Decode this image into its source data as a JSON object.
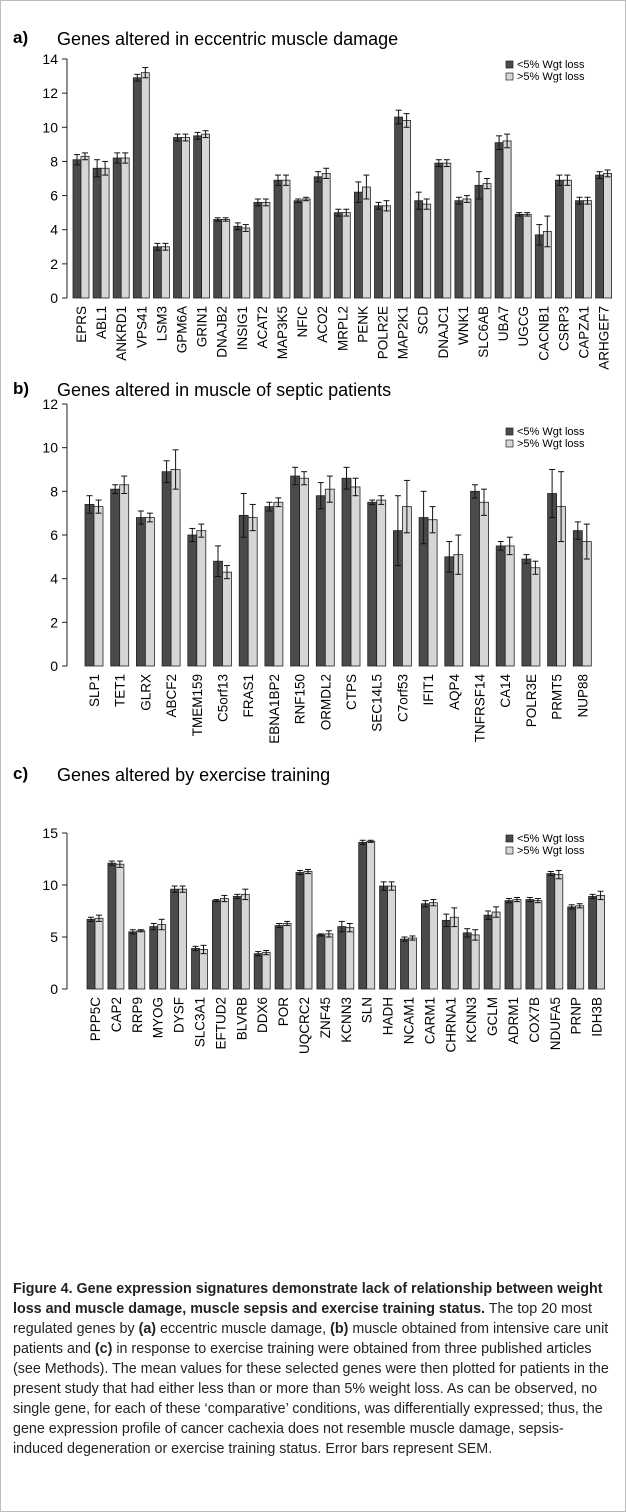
{
  "legend": {
    "series_a": "<5% Wgt loss",
    "series_b": ">5% Wgt loss"
  },
  "colors": {
    "series_a": "#4a4a4a",
    "series_b": "#d6d6d6",
    "border": "#bdbdbd"
  },
  "caption": {
    "title": "Figure 4. Gene expression signatures demonstrate lack of relationship between weight loss and muscle damage, muscle sepsis and exercise training status.",
    "p1": " The top 20 most regulated genes by ",
    "b1": "(a)",
    "p2": " eccentric muscle damage, ",
    "b2": "(b)",
    "p3": " muscle obtained from intensive care unit patients and ",
    "b3": "(c)",
    "p4": " in response to exercise training were obtained from three published articles (see Methods). The mean values for these selected genes were then plotted for patients in the present study that had either less than or more than 5% weight loss. As can be observed, no single gene, for each of these ‘comparative’ conditions, was differentially expressed; thus, the gene expression profile of cancer cachexia does not resemble muscle damage, sepsis-induced degeneration or exercise training status. Error bars represent SEM."
  },
  "chart_data": [
    {
      "type": "bar",
      "panel": "a)",
      "title": "Genes altered in eccentric muscle damage",
      "ylim": [
        0,
        14
      ],
      "yticks": [
        "0",
        "2",
        "4",
        "6",
        "8",
        "10",
        "12",
        "14"
      ],
      "grid": false,
      "legend_position": "top-right",
      "categories": [
        "EPRS",
        "ABL1",
        "ANKRD1",
        "VPS41",
        "LSM3",
        "GPM6A",
        "GRIN1",
        "DNAJB2",
        "INSIG1",
        "ACAT2",
        "MAP3K5",
        "NFIC",
        "ACO2",
        "MRPL2",
        "PENK",
        "POLR2E",
        "MAP2K1",
        "SCD",
        "DNAJC1",
        "WNK1",
        "SLC6AB",
        "UBA7",
        "UGCG",
        "CACNB1",
        "CSRP3",
        "CAPZA1",
        "ARHGEF7"
      ],
      "series": [
        {
          "name": "<5% Wgt loss",
          "values": [
            8.1,
            7.6,
            8.2,
            12.9,
            3.0,
            9.4,
            9.5,
            4.6,
            4.2,
            5.6,
            6.9,
            5.7,
            7.1,
            5.0,
            6.2,
            5.4,
            10.6,
            5.7,
            7.9,
            5.7,
            6.6,
            9.1,
            4.9,
            3.7,
            6.9,
            5.7,
            7.2
          ],
          "errors": [
            0.3,
            0.5,
            0.3,
            0.2,
            0.2,
            0.2,
            0.2,
            0.1,
            0.2,
            0.2,
            0.3,
            0.1,
            0.3,
            0.2,
            0.6,
            0.2,
            0.4,
            0.5,
            0.2,
            0.2,
            0.8,
            0.4,
            0.1,
            0.6,
            0.3,
            0.2,
            0.2
          ]
        },
        {
          "name": ">5% Wgt loss",
          "values": [
            8.3,
            7.6,
            8.2,
            13.2,
            3.0,
            9.4,
            9.6,
            4.6,
            4.1,
            5.6,
            6.9,
            5.8,
            7.3,
            5.0,
            6.5,
            5.4,
            10.4,
            5.5,
            7.9,
            5.8,
            6.7,
            9.2,
            4.9,
            3.9,
            6.9,
            5.7,
            7.3
          ],
          "errors": [
            0.2,
            0.4,
            0.3,
            0.3,
            0.2,
            0.2,
            0.2,
            0.1,
            0.2,
            0.2,
            0.3,
            0.1,
            0.3,
            0.2,
            0.7,
            0.3,
            0.4,
            0.3,
            0.2,
            0.2,
            0.3,
            0.4,
            0.1,
            0.9,
            0.3,
            0.2,
            0.2
          ]
        }
      ]
    },
    {
      "type": "bar",
      "panel": "b)",
      "title": "Genes altered in muscle of septic patients",
      "ylim": [
        0,
        12
      ],
      "yticks": [
        "0",
        "2",
        "4",
        "6",
        "8",
        "10",
        "12"
      ],
      "grid": false,
      "legend_position": "top-right",
      "categories": [
        "SLP1",
        "TET1",
        "GLRX",
        "ABCF2",
        "TMEM159",
        "C5orf13",
        "FRAS1",
        "EBNA1BP2",
        "RNF150",
        "ORMDL2",
        "CTPS",
        "SEC14L5",
        "C7orf53",
        "IFIT1",
        "AQP4",
        "TNFRSF14",
        "CA14",
        "POLR3E",
        "PRMT5",
        "NUP88"
      ],
      "series": [
        {
          "name": "<5% Wgt loss",
          "values": [
            7.4,
            8.1,
            6.8,
            8.9,
            6.0,
            4.8,
            6.9,
            7.3,
            8.7,
            7.8,
            8.6,
            7.5,
            6.2,
            6.8,
            5.0,
            8.0,
            5.5,
            4.9,
            7.9,
            6.2
          ],
          "errors": [
            0.4,
            0.2,
            0.3,
            0.5,
            0.3,
            0.7,
            1.0,
            0.2,
            0.4,
            0.6,
            0.5,
            0.1,
            1.6,
            1.2,
            0.7,
            0.3,
            0.2,
            0.2,
            1.1,
            0.4
          ]
        },
        {
          "name": ">5% Wgt loss",
          "values": [
            7.3,
            8.3,
            6.8,
            9.0,
            6.2,
            4.3,
            6.8,
            7.5,
            8.6,
            8.1,
            8.2,
            7.6,
            7.3,
            6.7,
            5.1,
            7.5,
            5.5,
            4.5,
            7.3,
            5.7
          ],
          "errors": [
            0.3,
            0.4,
            0.2,
            0.9,
            0.3,
            0.3,
            0.6,
            0.2,
            0.3,
            0.6,
            0.4,
            0.2,
            1.2,
            0.6,
            0.9,
            0.6,
            0.4,
            0.3,
            1.6,
            0.8
          ]
        }
      ]
    },
    {
      "type": "bar",
      "panel": "c)",
      "title": "Genes altered by exercise training",
      "ylim": [
        0,
        15
      ],
      "yticks": [
        "0",
        "5",
        "10",
        "15"
      ],
      "grid": false,
      "legend_position": "top-right",
      "categories": [
        "PPP5C",
        "CAP2",
        "RRP9",
        "MYOG",
        "DYSF",
        "SLC3A1",
        "EFTUD2",
        "BLVRB",
        "DDX6",
        "POR",
        "UQCRC2",
        "ZNF45",
        "KCNN3",
        "SLN",
        "HADH",
        "NCAM1",
        "CARM1",
        "CHRNA1",
        "KCNN3",
        "GCLM",
        "ADRM1",
        "COX7B",
        "NDUFA5",
        "PRNP",
        "IDH3B"
      ],
      "series": [
        {
          "name": "<5% Wgt loss",
          "values": [
            6.7,
            12.1,
            5.5,
            6.0,
            9.6,
            3.9,
            8.5,
            8.9,
            3.4,
            6.1,
            11.2,
            5.2,
            6.0,
            14.1,
            9.9,
            4.8,
            8.2,
            6.6,
            5.4,
            7.1,
            8.5,
            8.6,
            11.1,
            7.9,
            8.9
          ],
          "errors": [
            0.2,
            0.2,
            0.2,
            0.3,
            0.3,
            0.2,
            0.1,
            0.2,
            0.2,
            0.2,
            0.2,
            0.1,
            0.5,
            0.2,
            0.4,
            0.2,
            0.3,
            0.6,
            0.4,
            0.4,
            0.2,
            0.2,
            0.2,
            0.2,
            0.2
          ]
        },
        {
          "name": ">5% Wgt loss",
          "values": [
            6.8,
            12.0,
            5.6,
            6.2,
            9.6,
            3.8,
            8.7,
            9.1,
            3.5,
            6.3,
            11.3,
            5.3,
            5.9,
            14.2,
            9.9,
            4.9,
            8.3,
            6.9,
            5.2,
            7.4,
            8.6,
            8.5,
            11.0,
            8.0,
            9.0
          ],
          "errors": [
            0.3,
            0.3,
            0.1,
            0.5,
            0.3,
            0.4,
            0.3,
            0.5,
            0.2,
            0.2,
            0.2,
            0.3,
            0.4,
            0.1,
            0.4,
            0.2,
            0.3,
            0.9,
            0.5,
            0.5,
            0.2,
            0.2,
            0.4,
            0.2,
            0.4
          ]
        }
      ]
    }
  ]
}
